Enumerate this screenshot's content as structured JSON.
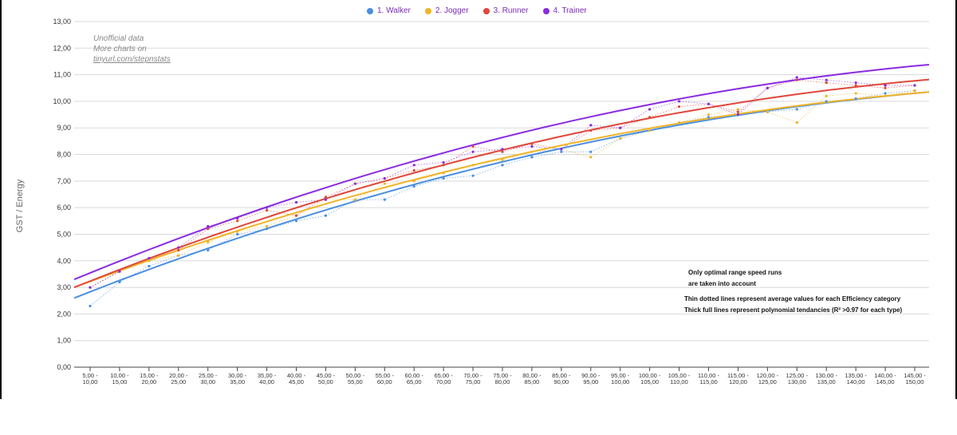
{
  "legend": [
    {
      "label": "1. Walker",
      "color": "#4a8fe0"
    },
    {
      "label": "2. Jogger",
      "color": "#f0b429"
    },
    {
      "label": "3. Runner",
      "color": "#e0473a"
    },
    {
      "label": "4. Trainer",
      "color": "#8a2be2"
    }
  ],
  "watermark": {
    "line1": "Unofficial data",
    "line2": "More charts on",
    "line3": "tinyurl.com/stepnstats"
  },
  "notes": {
    "line1": "Only optimal range speed runs",
    "line2": "are taken into account",
    "line3": "Thin dotted lines represent average values for each Efficiency category",
    "line4": "Thick full lines represent polynomial tendancies (R² >0.97 for each type)"
  },
  "chart_data": {
    "type": "line",
    "ylabel": "GST / Energy",
    "xlabel": "",
    "ylim": [
      0,
      13
    ],
    "yticks": [
      "0,00",
      "1,00",
      "2,00",
      "3,00",
      "4,00",
      "5,00",
      "6,00",
      "7,00",
      "8,00",
      "9,00",
      "10,00",
      "11,00",
      "12,00",
      "13,00"
    ],
    "grid": true,
    "legend_position": "top-center",
    "categories": [
      [
        "5,00 -",
        "10,00"
      ],
      [
        "10,00 -",
        "15,00"
      ],
      [
        "15,00 -",
        "20,00"
      ],
      [
        "20,00 -",
        "25,00"
      ],
      [
        "25,00 -",
        "30,00"
      ],
      [
        "30,00 -",
        "35,00"
      ],
      [
        "35,00 -",
        "40,00"
      ],
      [
        "40,00 -",
        "45,00"
      ],
      [
        "45,00 -",
        "50,00"
      ],
      [
        "50,00 -",
        "55,00"
      ],
      [
        "55,00 -",
        "60,00"
      ],
      [
        "60,00 -",
        "65,00"
      ],
      [
        "65,00 -",
        "70,00"
      ],
      [
        "70,00 -",
        "75,00"
      ],
      [
        "75,00 -",
        "80,00"
      ],
      [
        "80,00 -",
        "85,00"
      ],
      [
        "85,00 -",
        "90,00"
      ],
      [
        "90,00 -",
        "95,00"
      ],
      [
        "95,00 -",
        "100,00"
      ],
      [
        "100,00 -",
        "105,00"
      ],
      [
        "105,00 -",
        "110,00"
      ],
      [
        "110,00 -",
        "115,00"
      ],
      [
        "115,00 -",
        "120,00"
      ],
      [
        "120,00 -",
        "125,00"
      ],
      [
        "125,00 -",
        "130,00"
      ],
      [
        "130,00 -",
        "135,00"
      ],
      [
        "135,00 -",
        "140,00"
      ],
      [
        "140,00 -",
        "145,00"
      ],
      [
        "145,00 -",
        "150,00"
      ]
    ],
    "series": [
      {
        "name": "1. Walker",
        "color": "#4a8fe0",
        "values": [
          2.3,
          3.2,
          3.8,
          4.2,
          4.4,
          5.0,
          5.2,
          5.5,
          5.7,
          6.3,
          6.3,
          6.8,
          7.1,
          7.2,
          7.6,
          7.9,
          8.1,
          8.1,
          8.6,
          8.9,
          9.2,
          9.4,
          9.5,
          9.6,
          9.7,
          10.0,
          10.1,
          10.3,
          10.4
        ],
        "trend": [
          2.6,
          10.35
        ]
      },
      {
        "name": "2. Jogger",
        "color": "#f0b429",
        "values": [
          3.0,
          3.6,
          4.0,
          4.2,
          4.7,
          5.1,
          5.3,
          5.7,
          6.3,
          6.3,
          6.9,
          7.0,
          7.3,
          7.6,
          7.8,
          8.1,
          8.2,
          7.9,
          8.6,
          8.9,
          9.2,
          9.5,
          9.7,
          9.6,
          9.2,
          10.2,
          10.3,
          10.2,
          10.4
        ],
        "trend": [
          3.0,
          10.35
        ]
      },
      {
        "name": "3. Runner",
        "color": "#e0473a",
        "values": [
          3.0,
          3.6,
          4.1,
          4.4,
          5.2,
          5.5,
          5.9,
          5.7,
          6.4,
          6.9,
          7.1,
          7.4,
          7.6,
          8.3,
          8.1,
          8.4,
          8.2,
          8.9,
          9.0,
          9.4,
          9.8,
          9.9,
          9.6,
          10.5,
          10.8,
          10.7,
          10.6,
          10.5,
          10.6
        ],
        "trend": [
          3.0,
          10.82
        ]
      },
      {
        "name": "4. Trainer",
        "color": "#8a2be2",
        "values": [
          3.0,
          3.6,
          4.1,
          4.5,
          5.3,
          5.6,
          6.0,
          6.2,
          6.3,
          6.9,
          7.1,
          7.6,
          7.7,
          8.1,
          8.2,
          8.3,
          8.2,
          9.1,
          9.0,
          9.7,
          10.0,
          9.9,
          9.5,
          10.5,
          10.9,
          10.8,
          10.7,
          10.6,
          10.6
        ],
        "trend": [
          3.3,
          11.38
        ]
      }
    ]
  }
}
